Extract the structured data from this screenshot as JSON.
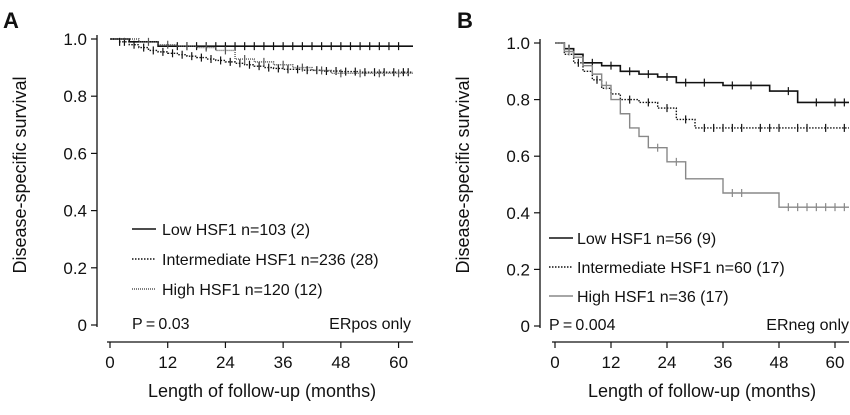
{
  "chart_data": [
    {
      "type": "line",
      "panel_label": "A",
      "xlabel": "Length of follow-up (months)",
      "ylabel": "Disease-specific survival",
      "xlim": [
        0,
        63
      ],
      "ylim": [
        0,
        1.0
      ],
      "xticks": [
        "0",
        "12",
        "24",
        "36",
        "48",
        "60"
      ],
      "yticks": [
        "0",
        "0.2",
        "0.4",
        "0.6",
        "0.8",
        "1.0"
      ],
      "pvalue": "P = 0.03",
      "subset": "ERpos only",
      "legend_position": "lower-left",
      "series": [
        {
          "name": "Low HSF1 n=103 (2)",
          "style": "solid",
          "x": [
            0,
            4,
            10,
            63
          ],
          "y": [
            1.0,
            0.99,
            0.975,
            0.975
          ],
          "censor_x": [
            14,
            16,
            18,
            20,
            22,
            24,
            26,
            28,
            30,
            32,
            34,
            36,
            38,
            40,
            42,
            44,
            46,
            48,
            50,
            52,
            54,
            56,
            58,
            60
          ]
        },
        {
          "name": "Intermediate HSF1 n=236 (28)",
          "style": "dotted",
          "x": [
            0,
            2,
            4,
            6,
            8,
            10,
            12,
            14,
            16,
            18,
            20,
            22,
            24,
            26,
            28,
            30,
            32,
            34,
            36,
            40,
            44,
            48,
            52,
            63
          ],
          "y": [
            1.0,
            0.99,
            0.98,
            0.97,
            0.96,
            0.955,
            0.95,
            0.945,
            0.94,
            0.935,
            0.93,
            0.925,
            0.92,
            0.915,
            0.91,
            0.905,
            0.9,
            0.897,
            0.894,
            0.891,
            0.888,
            0.886,
            0.884,
            0.884
          ],
          "censor_x": [
            2,
            3,
            5,
            7,
            9,
            11,
            13,
            15,
            17,
            19,
            21,
            23,
            25,
            27,
            29,
            31,
            33,
            35,
            37,
            39,
            41,
            43,
            45,
            47,
            49,
            51,
            53,
            55,
            57,
            59,
            61,
            62
          ]
        },
        {
          "name": "High HSF1 n=120 (12)",
          "style": "dense-dotted",
          "x": [
            0,
            6,
            10,
            14,
            18,
            22,
            26,
            30,
            34,
            38,
            42,
            46,
            63
          ],
          "y": [
            1.0,
            0.99,
            0.98,
            0.975,
            0.97,
            0.96,
            0.93,
            0.92,
            0.91,
            0.9,
            0.89,
            0.88,
            0.88
          ],
          "censor_x": [
            8,
            12,
            16,
            20,
            24,
            28,
            32,
            36,
            40,
            44,
            48,
            52,
            56,
            60
          ]
        }
      ]
    },
    {
      "type": "line",
      "panel_label": "B",
      "xlabel": "Length of follow-up (months)",
      "ylabel": "Disease-specific survival",
      "xlim": [
        0,
        63
      ],
      "ylim": [
        0,
        1.0
      ],
      "xticks": [
        "0",
        "12",
        "24",
        "36",
        "48",
        "60"
      ],
      "yticks": [
        "0",
        "0.2",
        "0.4",
        "0.6",
        "0.8",
        "1.0"
      ],
      "pvalue": "P = 0.004",
      "subset": "ERneg only",
      "legend_position": "lower-left",
      "series": [
        {
          "name": "Low HSF1 n=56 (9)",
          "style": "solid",
          "x": [
            0,
            2,
            4,
            6,
            10,
            14,
            18,
            22,
            26,
            36,
            46,
            52,
            63
          ],
          "y": [
            1.0,
            0.98,
            0.96,
            0.93,
            0.92,
            0.9,
            0.89,
            0.88,
            0.86,
            0.85,
            0.83,
            0.79,
            0.79
          ],
          "censor_x": [
            3,
            8,
            12,
            16,
            20,
            24,
            28,
            32,
            38,
            42,
            50,
            56,
            60,
            62
          ]
        },
        {
          "name": "Intermediate HSF1 n=60 (17)",
          "style": "dotted",
          "x": [
            0,
            2,
            4,
            6,
            8,
            10,
            12,
            14,
            18,
            22,
            26,
            30,
            63
          ],
          "y": [
            1.0,
            0.96,
            0.93,
            0.9,
            0.87,
            0.84,
            0.82,
            0.8,
            0.79,
            0.77,
            0.73,
            0.7,
            0.7
          ],
          "censor_x": [
            5,
            9,
            16,
            20,
            24,
            28,
            32,
            34,
            36,
            38,
            40,
            44,
            46,
            48,
            52,
            54,
            58,
            62
          ]
        },
        {
          "name": "High HSF1 n=36 (17)",
          "style": "solid-gray",
          "x": [
            0,
            2,
            4,
            6,
            8,
            10,
            12,
            14,
            16,
            18,
            20,
            24,
            28,
            36,
            48,
            63
          ],
          "y": [
            1.0,
            0.97,
            0.95,
            0.92,
            0.89,
            0.85,
            0.8,
            0.75,
            0.7,
            0.67,
            0.63,
            0.58,
            0.52,
            0.47,
            0.42,
            0.42
          ],
          "censor_x": [
            3,
            11,
            22,
            26,
            38,
            40,
            50,
            52,
            54,
            56,
            58,
            60,
            62
          ]
        }
      ]
    }
  ]
}
